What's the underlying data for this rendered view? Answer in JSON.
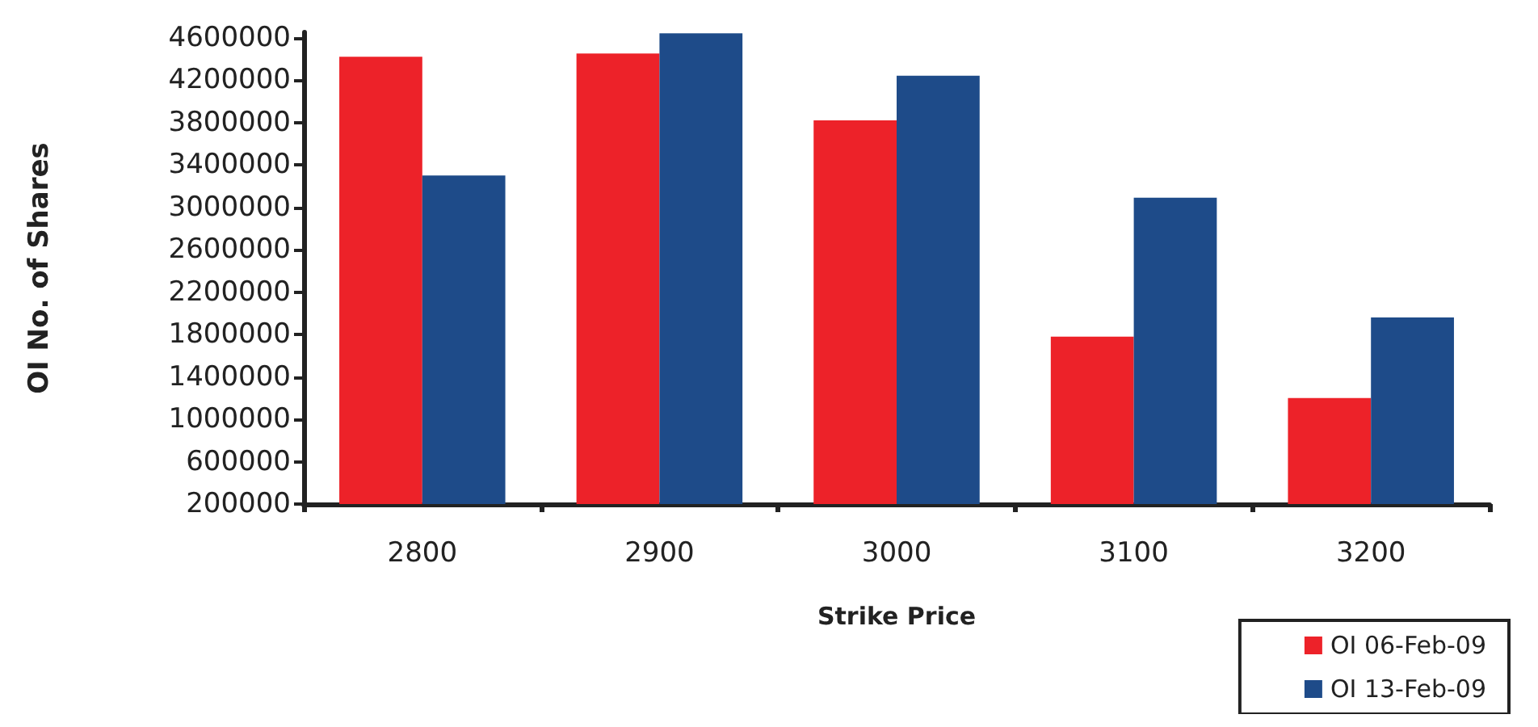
{
  "chart_data": {
    "type": "bar",
    "xlabel": "Strike Price",
    "ylabel": "OI No. of Shares",
    "categories": [
      "2800",
      "2900",
      "3000",
      "3100",
      "3200"
    ],
    "series": [
      {
        "name": "OI 06-Feb-09",
        "color": "#ed2229",
        "values": [
          4420000,
          4450000,
          3820000,
          1780000,
          1200000
        ]
      },
      {
        "name": "OI 13-Feb-09",
        "color": "#1e4b89",
        "values": [
          3300000,
          4640000,
          4240000,
          3090000,
          1960000
        ]
      }
    ],
    "ylim": [
      200000,
      4650000
    ],
    "yticks": [
      200000,
      600000,
      1000000,
      1400000,
      1800000,
      2200000,
      2600000,
      3000000,
      3400000,
      3800000,
      4200000,
      4600000
    ],
    "grid": false,
    "legend": "bottom right"
  }
}
